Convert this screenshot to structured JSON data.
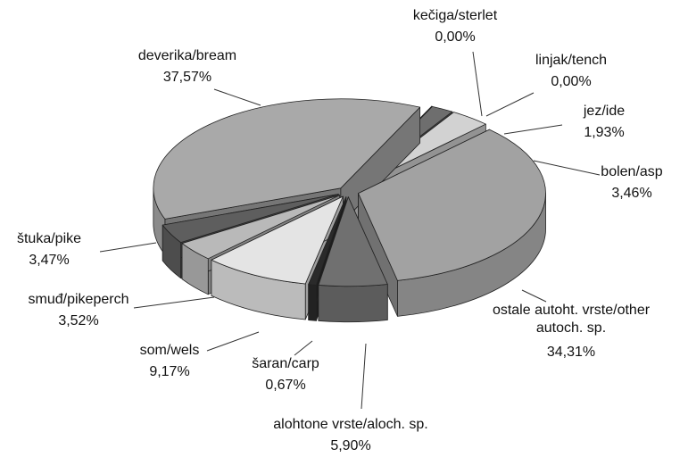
{
  "chart_data": {
    "type": "pie3d",
    "categories": [
      "kečiga/sterlet",
      "linjak/tench",
      "jez/ide",
      "bolen/asp",
      "ostale autoht. vrste/other autoch. sp.",
      "alohtone vrste/aloch. sp.",
      "šaran/carp",
      "som/wels",
      "smuđ/pikeperch",
      "štuka/pike",
      "deverika/bream"
    ],
    "values": [
      0.0,
      0.0,
      1.93,
      3.46,
      34.31,
      5.9,
      0.67,
      9.17,
      3.52,
      3.47,
      37.57
    ],
    "value_labels": [
      "0,00%",
      "0,00%",
      "1,93%",
      "3,46%",
      "34,31%",
      "5,90%",
      "0,67%",
      "9,17%",
      "3,52%",
      "3,47%",
      "37,57%"
    ],
    "colors": [
      "#111111",
      "#555555",
      "#6e6e6e",
      "#d2d2d2",
      "#a2a2a2",
      "#707070",
      "#2a2a2a",
      "#e4e4e4",
      "#b9b9b9",
      "#5e5e5e",
      "#a9a9a9"
    ]
  }
}
